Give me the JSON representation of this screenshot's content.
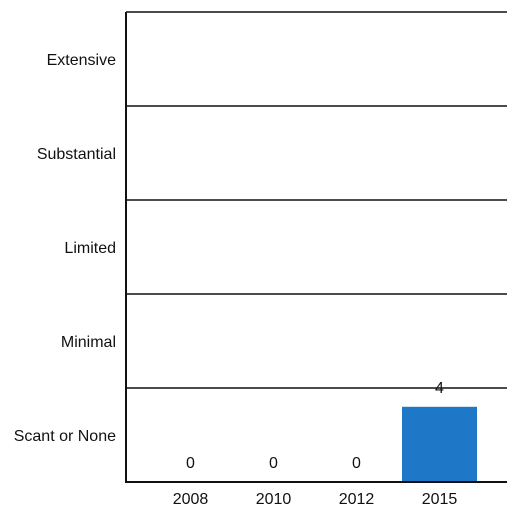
{
  "chart_data": {
    "type": "bar",
    "categories": [
      "2008",
      "2010",
      "2012",
      "2015"
    ],
    "values": [
      0,
      0,
      0,
      4
    ],
    "data_labels": [
      "0",
      "0",
      "0",
      "4"
    ],
    "y_levels": [
      "Scant or None",
      "Minimal",
      "Limited",
      "Substantial",
      "Extensive"
    ],
    "ylim": [
      0,
      25
    ],
    "grid": true,
    "bar_color": "#1f77c7",
    "title": "",
    "xlabel": "",
    "ylabel": ""
  }
}
